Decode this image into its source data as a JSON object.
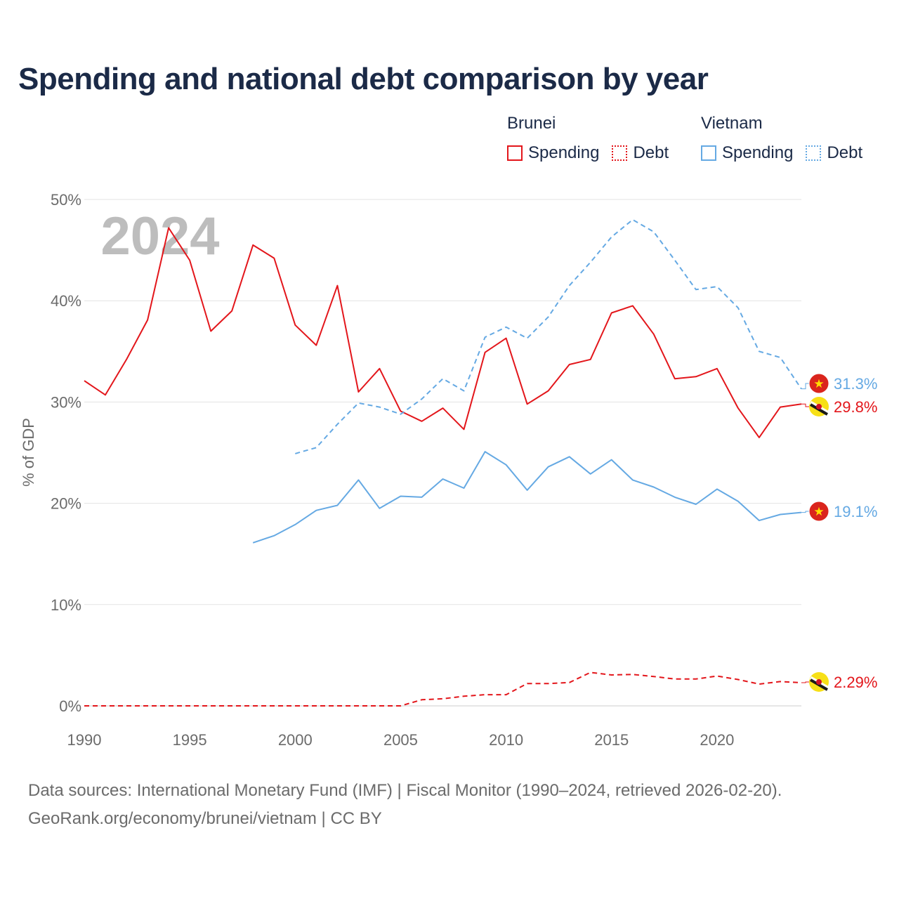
{
  "title": "Spending and national debt comparison by year",
  "legend": {
    "groups": [
      {
        "country": "Brunei",
        "items": [
          "Spending",
          "Debt"
        ]
      },
      {
        "country": "Vietnam",
        "items": [
          "Spending",
          "Debt"
        ]
      }
    ]
  },
  "sources": {
    "line1": "Data sources: International Monetary Fund (IMF) | Fiscal Monitor (1990–2024, retrieved 2026-02-20).",
    "line2": "GeoRank.org/economy/brunei/vietnam | CC BY"
  },
  "colors": {
    "brunei": "#e3161b",
    "vietnam": "#65a9e3",
    "title": "#1b2a47",
    "grid": "#dddddd",
    "axis_text": "#6b6b6b",
    "year_watermark": "#bdbdbd"
  },
  "chart_data": {
    "type": "line",
    "year_label": "2024",
    "ylabel": "% of GDP",
    "xlim": [
      1990,
      2024
    ],
    "ylim": [
      0,
      50
    ],
    "xticks": [
      1990,
      1995,
      2000,
      2005,
      2010,
      2015,
      2020
    ],
    "yticks": [
      0,
      10,
      20,
      30,
      40,
      50
    ],
    "ytick_labels": [
      "0%",
      "10%",
      "20%",
      "30%",
      "40%",
      "50%"
    ],
    "grid": true,
    "series": [
      {
        "name": "Brunei Spending",
        "country": "Brunei",
        "metric": "Spending",
        "style": "solid",
        "color": "#e3161b",
        "x": [
          1990,
          1991,
          1992,
          1993,
          1994,
          1995,
          1996,
          1997,
          1998,
          1999,
          2000,
          2001,
          2002,
          2003,
          2004,
          2005,
          2006,
          2007,
          2008,
          2009,
          2010,
          2011,
          2012,
          2013,
          2014,
          2015,
          2016,
          2017,
          2018,
          2019,
          2020,
          2021,
          2022,
          2023,
          2024
        ],
        "values": [
          32.1,
          30.7,
          34.2,
          38.1,
          47.2,
          44.0,
          37.0,
          39.0,
          45.5,
          44.2,
          37.6,
          35.6,
          41.5,
          31.0,
          33.3,
          29.1,
          28.1,
          29.4,
          27.3,
          34.9,
          36.3,
          29.8,
          31.1,
          33.7,
          34.2,
          38.8,
          39.5,
          36.7,
          32.3,
          32.5,
          33.3,
          29.4,
          26.5,
          29.5,
          29.8
        ],
        "end_label": "29.8%"
      },
      {
        "name": "Brunei Debt",
        "country": "Brunei",
        "metric": "Debt",
        "style": "dashed",
        "color": "#e3161b",
        "x": [
          1990,
          1991,
          1992,
          1993,
          1994,
          1995,
          1996,
          1997,
          1998,
          1999,
          2000,
          2001,
          2002,
          2003,
          2004,
          2005,
          2006,
          2007,
          2008,
          2009,
          2010,
          2011,
          2012,
          2013,
          2014,
          2015,
          2016,
          2017,
          2018,
          2019,
          2020,
          2021,
          2022,
          2023,
          2024
        ],
        "values": [
          0,
          0,
          0,
          0,
          0,
          0,
          0,
          0,
          0,
          0,
          0,
          0,
          0,
          0,
          0,
          0,
          0.6,
          0.7,
          0.95,
          1.1,
          1.1,
          2.2,
          2.2,
          2.3,
          3.3,
          3.05,
          3.1,
          2.9,
          2.65,
          2.65,
          2.95,
          2.6,
          2.15,
          2.4,
          2.29
        ],
        "end_label": "2.29%"
      },
      {
        "name": "Vietnam Spending",
        "country": "Vietnam",
        "metric": "Spending",
        "style": "solid",
        "color": "#65a9e3",
        "x": [
          1998,
          1999,
          2000,
          2001,
          2002,
          2003,
          2004,
          2005,
          2006,
          2007,
          2008,
          2009,
          2010,
          2011,
          2012,
          2013,
          2014,
          2015,
          2016,
          2017,
          2018,
          2019,
          2020,
          2021,
          2022,
          2023,
          2024
        ],
        "values": [
          16.1,
          16.8,
          17.9,
          19.3,
          19.8,
          22.3,
          19.5,
          20.7,
          20.6,
          22.4,
          21.5,
          25.1,
          23.8,
          21.3,
          23.6,
          24.6,
          22.9,
          24.3,
          22.3,
          21.6,
          20.6,
          19.9,
          21.4,
          20.2,
          18.3,
          18.9,
          19.1
        ],
        "end_label": "19.1%"
      },
      {
        "name": "Vietnam Debt",
        "country": "Vietnam",
        "metric": "Debt",
        "style": "dashed",
        "color": "#65a9e3",
        "x": [
          2000,
          2001,
          2002,
          2003,
          2004,
          2005,
          2006,
          2007,
          2008,
          2009,
          2010,
          2011,
          2012,
          2013,
          2014,
          2015,
          2016,
          2017,
          2018,
          2019,
          2020,
          2021,
          2022,
          2023,
          2024
        ],
        "values": [
          24.9,
          25.5,
          27.8,
          29.9,
          29.5,
          28.8,
          30.3,
          32.3,
          31.1,
          36.4,
          37.4,
          36.3,
          38.4,
          41.5,
          43.8,
          46.3,
          48.0,
          46.8,
          44.0,
          41.1,
          41.4,
          39.3,
          35.0,
          34.4,
          31.3
        ],
        "end_label": "31.3%"
      }
    ]
  }
}
